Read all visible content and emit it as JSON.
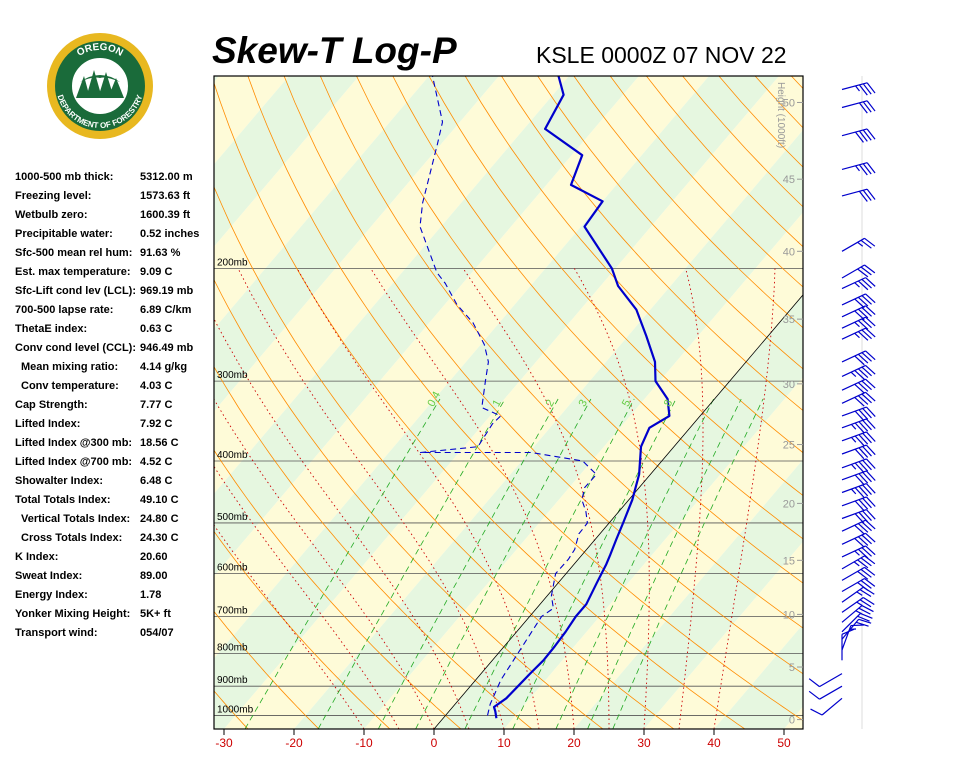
{
  "header": {
    "title": "Skew-T Log-P",
    "subtitle": "KSLE 0000Z 07 NOV 22"
  },
  "logo": {
    "top_text": "OREGON",
    "bottom_text": "DEPARTMENT OF FORESTRY",
    "colors": {
      "ring": "#e8b820",
      "inner": "#1a6b3a",
      "text": "#ffffff"
    }
  },
  "indices": [
    {
      "label": "1000-500 mb thick:",
      "value": "5312.00 m",
      "indent": false
    },
    {
      "label": "Freezing level:",
      "value": "1573.63 ft",
      "indent": false
    },
    {
      "label": "Wetbulb zero:",
      "value": "1600.39 ft",
      "indent": false
    },
    {
      "label": "Precipitable water:",
      "value": "0.52 inches",
      "indent": false
    },
    {
      "label": "Sfc-500 mean rel hum:",
      "value": "91.63 %",
      "indent": false
    },
    {
      "label": "Est. max temperature:",
      "value": "9.09 C",
      "indent": false
    },
    {
      "label": "Sfc-Lift cond lev (LCL):",
      "value": "969.19 mb",
      "indent": false
    },
    {
      "label": "700-500 lapse rate:",
      "value": "6.89 C/km",
      "indent": false
    },
    {
      "label": "ThetaE index:",
      "value": "0.63 C",
      "indent": false
    },
    {
      "label": "Conv cond level (CCL):",
      "value": "946.49 mb",
      "indent": false
    },
    {
      "label": "Mean mixing ratio:",
      "value": "4.14 g/kg",
      "indent": true
    },
    {
      "label": "Conv temperature:",
      "value": "4.03 C",
      "indent": true
    },
    {
      "label": "Cap Strength:",
      "value": "7.77 C",
      "indent": false
    },
    {
      "label": "Lifted Index:",
      "value": "7.92 C",
      "indent": false
    },
    {
      "label": "Lifted Index @300 mb:",
      "value": "18.56 C",
      "indent": false
    },
    {
      "label": "Lifted Index @700 mb:",
      "value": "4.52 C",
      "indent": false
    },
    {
      "label": "Showalter Index:",
      "value": "6.48 C",
      "indent": false
    },
    {
      "label": "Total Totals Index:",
      "value": "49.10 C",
      "indent": false
    },
    {
      "label": "Vertical Totals Index:",
      "value": "24.80 C",
      "indent": true
    },
    {
      "label": "Cross Totals Index:",
      "value": "24.30 C",
      "indent": true
    },
    {
      "label": "K Index:",
      "value": "20.60",
      "indent": false
    },
    {
      "label": "Sweat Index:",
      "value": "89.00",
      "indent": false
    },
    {
      "label": "Energy Index:",
      "value": "1.78",
      "indent": false
    },
    {
      "label": "Yonker Mixing Height:",
      "value": "5K+ ft",
      "indent": false
    },
    {
      "label": "Transport wind:",
      "value": "054/07",
      "indent": false
    }
  ],
  "chart_data": {
    "type": "line",
    "x_ticks": [
      "-30",
      "-20",
      "-10",
      "0",
      "10",
      "20",
      "30",
      "40",
      "50"
    ],
    "xlim": [
      -30,
      50
    ],
    "pressure_levels": [
      {
        "p": 200,
        "label": "200mb"
      },
      {
        "p": 300,
        "label": "300mb"
      },
      {
        "p": 400,
        "label": "400mb"
      },
      {
        "p": 500,
        "label": "500mb"
      },
      {
        "p": 600,
        "label": "600mb"
      },
      {
        "p": 700,
        "label": "700mb"
      },
      {
        "p": 800,
        "label": "800mb"
      },
      {
        "p": 900,
        "label": "900mb"
      },
      {
        "p": 1000,
        "label": "1000mb"
      }
    ],
    "height_axis_label": "Height (1000ft)",
    "height_ticks": [
      {
        "p": 1015,
        "label": "0"
      },
      {
        "p": 840,
        "label": "5"
      },
      {
        "p": 695,
        "label": "10"
      },
      {
        "p": 572,
        "label": "15"
      },
      {
        "p": 466,
        "label": "20"
      },
      {
        "p": 377,
        "label": "25"
      },
      {
        "p": 303,
        "label": "30"
      },
      {
        "p": 240,
        "label": "35"
      },
      {
        "p": 188,
        "label": "40"
      },
      {
        "p": 145,
        "label": "45"
      },
      {
        "p": 110,
        "label": "50"
      }
    ],
    "mixing_ratio_labels": [
      "0.4",
      "1",
      "2",
      "3",
      "5",
      "8"
    ],
    "series": [
      {
        "name": "Temperature",
        "color": "#0000cc",
        "points": [
          [
            7.6,
            1010
          ],
          [
            6.6,
            985
          ],
          [
            5.9,
            970
          ],
          [
            6.6,
            940
          ],
          [
            6.8,
            900
          ],
          [
            7.0,
            860
          ],
          [
            7.3,
            820
          ],
          [
            7.2,
            780
          ],
          [
            7.0,
            740
          ],
          [
            6.6,
            700
          ],
          [
            6.6,
            670
          ],
          [
            5.5,
            620
          ],
          [
            4.6,
            580
          ],
          [
            4.0,
            560
          ],
          [
            3.0,
            530
          ],
          [
            2.0,
            500
          ],
          [
            0.5,
            460
          ],
          [
            -1.6,
            420
          ],
          [
            -4.7,
            380
          ],
          [
            -5.8,
            355
          ],
          [
            -4.4,
            340
          ],
          [
            -6.7,
            320
          ],
          [
            -10.6,
            300
          ],
          [
            -13.0,
            280
          ],
          [
            -17.4,
            255
          ],
          [
            -22.0,
            232
          ],
          [
            -27.5,
            213
          ],
          [
            -30.5,
            200
          ],
          [
            -39.5,
            172
          ],
          [
            -40.0,
            157
          ],
          [
            -46.5,
            148
          ],
          [
            -48.5,
            133
          ],
          [
            -57.0,
            121
          ],
          [
            -58.5,
            107
          ],
          [
            -61.5,
            100
          ]
        ]
      },
      {
        "name": "Dew Point",
        "color": "#0000cc",
        "points": [
          [
            6.0,
            1000
          ],
          [
            5.0,
            960
          ],
          [
            4.5,
            930
          ],
          [
            3.6,
            880
          ],
          [
            1.7,
            700
          ],
          [
            2.4,
            680
          ],
          [
            0.6,
            650
          ],
          [
            -1.5,
            600
          ],
          [
            -1.4,
            570
          ],
          [
            -1.7,
            550
          ],
          [
            -3.0,
            520
          ],
          [
            -3.1,
            500
          ],
          [
            -4.7,
            480
          ],
          [
            -6.7,
            460
          ],
          [
            -7.8,
            440
          ],
          [
            -7.7,
            420
          ],
          [
            -11.3,
            400
          ],
          [
            -19.7,
            388
          ],
          [
            -35.5,
            388
          ],
          [
            -28.0,
            380
          ],
          [
            -28.7,
            350
          ],
          [
            -28.5,
            340
          ],
          [
            -32.2,
            330
          ],
          [
            -34.9,
            300
          ],
          [
            -36.8,
            280
          ],
          [
            -39.5,
            263
          ],
          [
            -43.8,
            243
          ],
          [
            -48.2,
            228
          ],
          [
            -52.5,
            211
          ],
          [
            -55.0,
            203
          ],
          [
            -63.0,
            172
          ],
          [
            -65.5,
            158
          ],
          [
            -70.5,
            128
          ],
          [
            -72.5,
            118
          ],
          [
            -79.5,
            100
          ]
        ]
      }
    ],
    "winds": [
      {
        "p": 105,
        "dir": 255,
        "spd": 35
      },
      {
        "p": 112,
        "dir": 255,
        "spd": 30
      },
      {
        "p": 124,
        "dir": 255,
        "spd": 40
      },
      {
        "p": 140,
        "dir": 255,
        "spd": 35
      },
      {
        "p": 154,
        "dir": 255,
        "spd": 30
      },
      {
        "p": 188,
        "dir": 240,
        "spd": 25
      },
      {
        "p": 207,
        "dir": 240,
        "spd": 30
      },
      {
        "p": 215,
        "dir": 245,
        "spd": 35
      },
      {
        "p": 228,
        "dir": 245,
        "spd": 40
      },
      {
        "p": 238,
        "dir": 245,
        "spd": 40
      },
      {
        "p": 248,
        "dir": 245,
        "spd": 35
      },
      {
        "p": 258,
        "dir": 245,
        "spd": 35
      },
      {
        "p": 280,
        "dir": 245,
        "spd": 40
      },
      {
        "p": 295,
        "dir": 245,
        "spd": 45
      },
      {
        "p": 310,
        "dir": 245,
        "spd": 40
      },
      {
        "p": 325,
        "dir": 245,
        "spd": 40
      },
      {
        "p": 340,
        "dir": 250,
        "spd": 40
      },
      {
        "p": 355,
        "dir": 250,
        "spd": 45
      },
      {
        "p": 372,
        "dir": 250,
        "spd": 45
      },
      {
        "p": 390,
        "dir": 250,
        "spd": 40
      },
      {
        "p": 410,
        "dir": 250,
        "spd": 45
      },
      {
        "p": 428,
        "dir": 250,
        "spd": 40
      },
      {
        "p": 448,
        "dir": 250,
        "spd": 45
      },
      {
        "p": 470,
        "dir": 250,
        "spd": 40
      },
      {
        "p": 492,
        "dir": 250,
        "spd": 40
      },
      {
        "p": 515,
        "dir": 245,
        "spd": 40
      },
      {
        "p": 540,
        "dir": 245,
        "spd": 40
      },
      {
        "p": 565,
        "dir": 245,
        "spd": 35
      },
      {
        "p": 590,
        "dir": 240,
        "spd": 35
      },
      {
        "p": 615,
        "dir": 240,
        "spd": 30
      },
      {
        "p": 640,
        "dir": 240,
        "spd": 30
      },
      {
        "p": 665,
        "dir": 235,
        "spd": 25
      },
      {
        "p": 690,
        "dir": 235,
        "spd": 25
      },
      {
        "p": 715,
        "dir": 230,
        "spd": 25
      },
      {
        "p": 740,
        "dir": 225,
        "spd": 20
      },
      {
        "p": 760,
        "dir": 220,
        "spd": 20
      },
      {
        "p": 790,
        "dir": 200,
        "spd": 15
      },
      {
        "p": 820,
        "dir": 180,
        "spd": 10
      },
      {
        "p": 860,
        "dir": 60,
        "spd": 10
      },
      {
        "p": 900,
        "dir": 60,
        "spd": 10
      },
      {
        "p": 940,
        "dir": 50,
        "spd": 10
      }
    ],
    "colors": {
      "dry_adiabat": "#ff8c00",
      "moist_adiabat": "#cc0000",
      "mixing_ratio": "#22aa22",
      "isobar": "#555555",
      "zero_isotherm": "#000000",
      "band_green": "#e6f7e0",
      "band_yellow": "#fefbd8",
      "axis_label": "#cc0000"
    }
  }
}
